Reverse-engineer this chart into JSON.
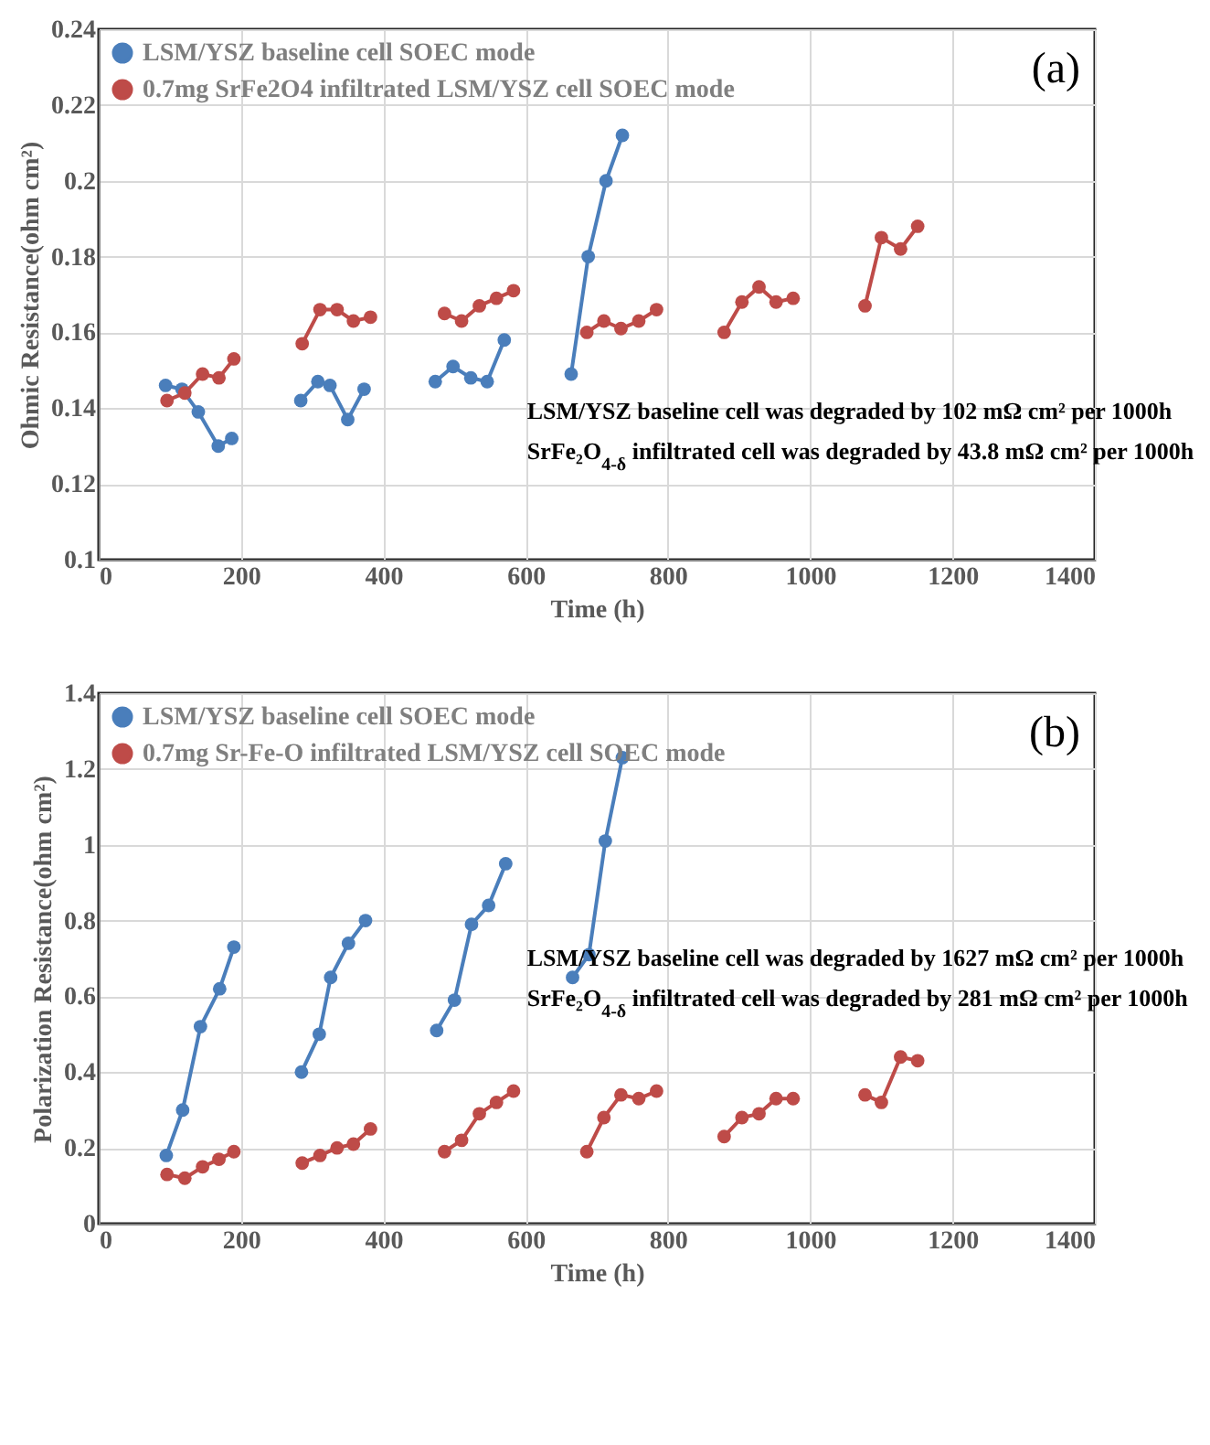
{
  "chart_data": [
    {
      "type": "line",
      "xlabel": "Time (h)",
      "ylabel": "Ohmic Resistance(ohm cm²)",
      "annotations": [
        "(a)",
        "LSM/YSZ baseline cell was degraded by 102 mΩ cm² per 1000h",
        "SrFe₂O$_{4-δ}$ infiltrated cell was degraded by 43.8 mΩ cm² per 1000h"
      ],
      "series": [
        {
          "name": "LSM/YSZ baseline cell SOEC mode",
          "color": "#4a7ebb",
          "x": [
            94,
            117,
            140,
            168,
            187,
            null,
            284,
            308,
            325,
            350,
            373,
            null,
            473,
            498,
            523,
            546,
            570,
            null,
            664,
            688,
            713,
            736
          ],
          "values": [
            0.146,
            0.145,
            0.139,
            0.13,
            0.132,
            null,
            0.142,
            0.147,
            0.146,
            0.137,
            0.145,
            null,
            0.147,
            0.151,
            0.148,
            0.147,
            0.158,
            null,
            0.149,
            0.18,
            0.2,
            0.212
          ]
        },
        {
          "name": "0.7mg SrFe2O4 infiltrated LSM/YSZ cell SOEC mode",
          "color": "#be4b48",
          "x": [
            96,
            121,
            146,
            169,
            190,
            null,
            286,
            311,
            335,
            358,
            382,
            null,
            486,
            510,
            535,
            559,
            583,
            null,
            686,
            710,
            734,
            759,
            784,
            null,
            879,
            904,
            928,
            952,
            976,
            null,
            1077,
            1100,
            1127,
            1151
          ],
          "values": [
            0.142,
            0.144,
            0.149,
            0.148,
            0.153,
            null,
            0.157,
            0.166,
            0.166,
            0.163,
            0.164,
            null,
            0.165,
            0.163,
            0.167,
            0.169,
            0.171,
            null,
            0.16,
            0.163,
            0.161,
            0.163,
            0.166,
            null,
            0.16,
            0.168,
            0.172,
            0.168,
            0.169,
            null,
            0.167,
            0.185,
            0.182,
            0.188
          ]
        }
      ],
      "xlim": [
        0,
        1400
      ],
      "xticks": [
        0,
        200,
        400,
        600,
        800,
        1000,
        1200,
        1400
      ],
      "ylim": [
        0.1,
        0.24
      ],
      "yticks": [
        0.1,
        0.12,
        0.14,
        0.16,
        0.18,
        0.2,
        0.22,
        0.24
      ],
      "grid": true,
      "legend": "top left",
      "marker": "circle",
      "line_style": "solid"
    },
    {
      "type": "line",
      "xlabel": "Time (h)",
      "ylabel": "Polarization Resistance(ohm cm²)",
      "annotations": [
        "(b)",
        "LSM/YSZ baseline cell was degraded by 1627 mΩ cm² per 1000h",
        "SrFe₂O$_{4-δ}$ infiltrated cell was degraded by 281 mΩ cm² per 1000h"
      ],
      "series": [
        {
          "name": "LSM/YSZ baseline cell SOEC mode",
          "color": "#4a7ebb",
          "x": [
            95,
            118,
            143,
            170,
            190,
            null,
            285,
            310,
            326,
            351,
            375,
            null,
            475,
            500,
            524,
            548,
            572,
            null,
            666,
            689,
            712,
            736
          ],
          "values": [
            0.18,
            0.3,
            0.52,
            0.62,
            0.73,
            null,
            0.4,
            0.5,
            0.65,
            0.74,
            0.8,
            null,
            0.51,
            0.59,
            0.79,
            0.84,
            0.95,
            null,
            0.65,
            0.71,
            1.01,
            1.23
          ]
        },
        {
          "name": "0.7mg Sr-Fe-O infiltrated LSM/YSZ cell SOEC mode",
          "color": "#be4b48",
          "x": [
            96,
            121,
            146,
            169,
            190,
            null,
            286,
            311,
            335,
            358,
            382,
            null,
            486,
            510,
            535,
            559,
            583,
            null,
            686,
            710,
            734,
            759,
            784,
            null,
            879,
            904,
            928,
            952,
            976,
            null,
            1077,
            1100,
            1127,
            1151
          ],
          "values": [
            0.13,
            0.12,
            0.15,
            0.17,
            0.19,
            null,
            0.16,
            0.18,
            0.2,
            0.21,
            0.25,
            null,
            0.19,
            0.22,
            0.29,
            0.32,
            0.35,
            null,
            0.19,
            0.28,
            0.34,
            0.33,
            0.35,
            null,
            0.23,
            0.28,
            0.29,
            0.33,
            0.33,
            null,
            0.34,
            0.32,
            0.44,
            0.43
          ]
        }
      ],
      "xlim": [
        0,
        1400
      ],
      "xticks": [
        0,
        200,
        400,
        600,
        800,
        1000,
        1200,
        1400
      ],
      "ylim": [
        0,
        1.4
      ],
      "yticks": [
        0,
        0.2,
        0.4,
        0.6,
        0.8,
        1,
        1.2,
        1.4
      ],
      "grid": true,
      "legend": "top left",
      "marker": "circle",
      "line_style": "solid"
    }
  ]
}
